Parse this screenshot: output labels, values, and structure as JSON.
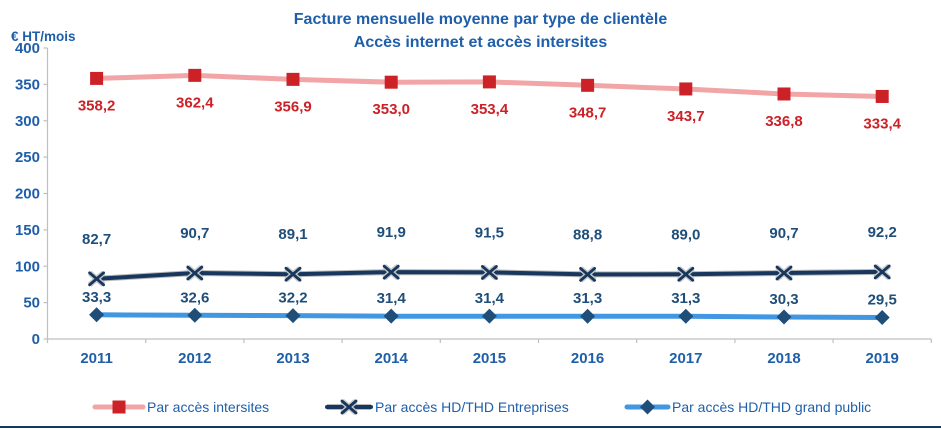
{
  "title": {
    "line1": "Facture mensuelle moyenne par type de clientèle",
    "line2": "Accès internet et accès intersites",
    "color": "#1F5FA9"
  },
  "y_axis": {
    "unit_label": "€ HT/mois",
    "tick_labels": [
      "0",
      "50",
      "100",
      "150",
      "200",
      "250",
      "300",
      "350",
      "400"
    ],
    "label_color": "#1F5FA9",
    "axis_color": "#BFBFBF"
  },
  "x_axis": {
    "label_color": "#1F5FA9",
    "axis_color": "#BFBFBF"
  },
  "chart_data": {
    "type": "line",
    "title": "Facture mensuelle moyenne par type de clientèle — Accès internet et accès intersites",
    "ylabel": "€ HT/mois",
    "ylim": [
      0,
      400
    ],
    "y_ticks": [
      0,
      50,
      100,
      150,
      200,
      250,
      300,
      350,
      400
    ],
    "grid": false,
    "legend_position": "bottom",
    "categories": [
      "2011",
      "2012",
      "2013",
      "2014",
      "2015",
      "2016",
      "2017",
      "2018",
      "2019"
    ],
    "series": [
      {
        "name": "Par accès intersites",
        "values": [
          358.2,
          362.4,
          356.9,
          353.0,
          353.4,
          348.7,
          343.7,
          336.8,
          333.4
        ],
        "labels": [
          "358,2",
          "362,4",
          "356,9",
          "353,0",
          "353,4",
          "348,7",
          "343,7",
          "336,8",
          "333,4"
        ],
        "marker": "square",
        "line_color": "#F2A5A6",
        "line_width": 5,
        "marker_color": "#CB2127",
        "label_color": "#CB2127",
        "label_side": "below"
      },
      {
        "name": "Par accès HD/THD Entreprises",
        "values": [
          82.7,
          90.7,
          89.1,
          91.9,
          91.5,
          88.8,
          89.0,
          90.7,
          92.2
        ],
        "labels": [
          "82,7",
          "90,7",
          "89,1",
          "91,9",
          "91,5",
          "88,8",
          "89,0",
          "90,7",
          "92,2"
        ],
        "marker": "x",
        "line_color": "#17375E",
        "line_width": 4,
        "marker_color": "#17375E",
        "label_color": "#1F4E79",
        "label_side": "above_far"
      },
      {
        "name": "Par accès HD/THD grand public",
        "values": [
          33.3,
          32.6,
          32.2,
          31.4,
          31.4,
          31.3,
          31.3,
          30.3,
          29.5
        ],
        "labels": [
          "33,3",
          "32,6",
          "32,2",
          "31,4",
          "31,4",
          "31,3",
          "31,3",
          "30,3",
          "29,5"
        ],
        "marker": "diamond",
        "line_color": "#4197E2",
        "line_width": 5,
        "marker_color": "#1F4E79",
        "label_color": "#1F4E79",
        "label_side": "above"
      }
    ]
  },
  "legend": {
    "text_color": "#1F5FA9"
  },
  "page": {
    "bottom_rule_color": "#17375E"
  }
}
